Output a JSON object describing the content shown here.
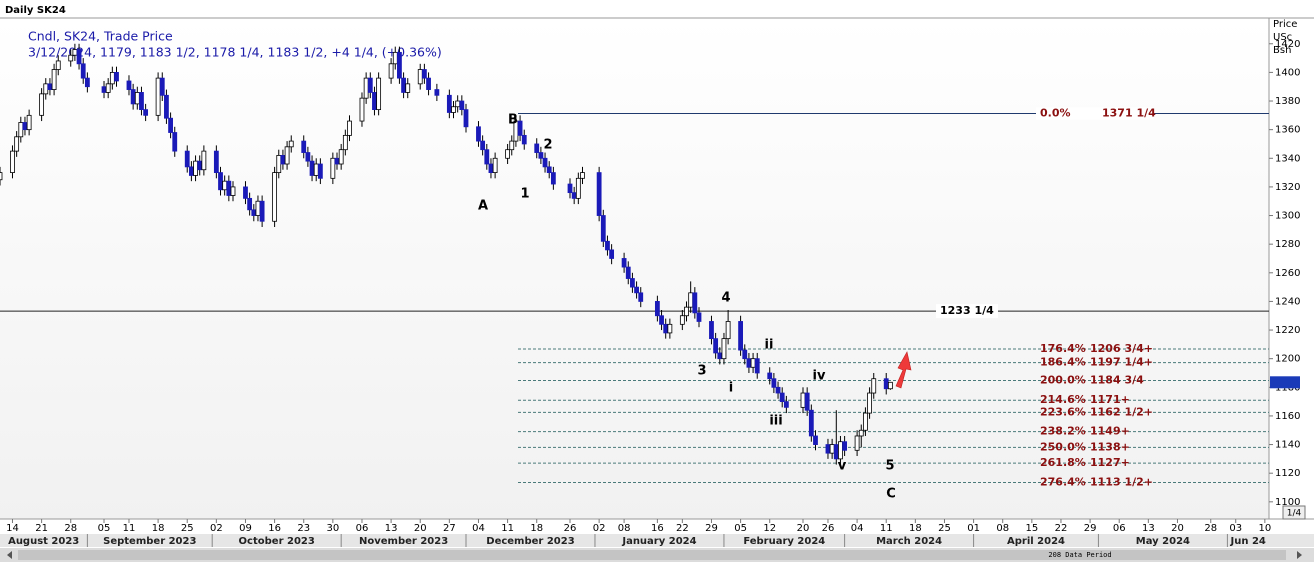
{
  "header": "Daily SK24",
  "chart_data": {
    "type": "candlestick",
    "legend_lines": [
      "Cndl, SK24, Trade Price",
      "3/12/2024, 1179, 1183 1/2, 1178 1/4, 1183 1/2, +4 1/4, (+0.36%)"
    ],
    "y_axis_title": [
      "Price",
      "USc",
      "Bsh"
    ],
    "up_color": "#ffffff",
    "down_color": "#1a1ab8",
    "ylim": [
      1088,
      1438
    ],
    "yticks": [
      1100,
      1120,
      1140,
      1160,
      1180,
      1200,
      1220,
      1240,
      1260,
      1280,
      1300,
      1320,
      1340,
      1360,
      1380,
      1400,
      1420
    ],
    "xlim": [
      "2023-08-11",
      "2024-06-11"
    ],
    "xticks": [
      {
        "value": "2023-08-14",
        "label": "14"
      },
      {
        "value": "2023-08-21",
        "label": "21"
      },
      {
        "value": "2023-08-28",
        "label": "28"
      },
      {
        "value": "2023-09-05",
        "label": "05"
      },
      {
        "value": "2023-09-11",
        "label": "11"
      },
      {
        "value": "2023-09-18",
        "label": "18"
      },
      {
        "value": "2023-09-25",
        "label": "25"
      },
      {
        "value": "2023-10-02",
        "label": "02"
      },
      {
        "value": "2023-10-09",
        "label": "09"
      },
      {
        "value": "2023-10-16",
        "label": "16"
      },
      {
        "value": "2023-10-23",
        "label": "23"
      },
      {
        "value": "2023-10-30",
        "label": "30"
      },
      {
        "value": "2023-11-06",
        "label": "06"
      },
      {
        "value": "2023-11-13",
        "label": "13"
      },
      {
        "value": "2023-11-20",
        "label": "20"
      },
      {
        "value": "2023-11-27",
        "label": "27"
      },
      {
        "value": "2023-12-04",
        "label": "04"
      },
      {
        "value": "2023-12-11",
        "label": "11"
      },
      {
        "value": "2023-12-18",
        "label": "18"
      },
      {
        "value": "2023-12-26",
        "label": "26"
      },
      {
        "value": "2024-01-02",
        "label": "02"
      },
      {
        "value": "2024-01-08",
        "label": "08"
      },
      {
        "value": "2024-01-16",
        "label": "16"
      },
      {
        "value": "2024-01-22",
        "label": "22"
      },
      {
        "value": "2024-01-29",
        "label": "29"
      },
      {
        "value": "2024-02-05",
        "label": "05"
      },
      {
        "value": "2024-02-12",
        "label": "12"
      },
      {
        "value": "2024-02-20",
        "label": "20"
      },
      {
        "value": "2024-02-26",
        "label": "26"
      },
      {
        "value": "2024-03-04",
        "label": "04"
      },
      {
        "value": "2024-03-11",
        "label": "11"
      },
      {
        "value": "2024-03-18",
        "label": "18"
      },
      {
        "value": "2024-03-25",
        "label": "25"
      },
      {
        "value": "2024-04-01",
        "label": "01"
      },
      {
        "value": "2024-04-08",
        "label": "08"
      },
      {
        "value": "2024-04-15",
        "label": "15"
      },
      {
        "value": "2024-04-22",
        "label": "22"
      },
      {
        "value": "2024-04-29",
        "label": "29"
      },
      {
        "value": "2024-05-06",
        "label": "06"
      },
      {
        "value": "2024-05-13",
        "label": "13"
      },
      {
        "value": "2024-05-20",
        "label": "20"
      },
      {
        "value": "2024-05-28",
        "label": "28"
      },
      {
        "value": "2024-06-03",
        "label": "03"
      },
      {
        "value": "2024-06-10",
        "label": "10"
      }
    ],
    "months": [
      {
        "value": "2023-08",
        "label": "August 2023"
      },
      {
        "value": "2023-09",
        "label": "September 2023"
      },
      {
        "value": "2023-10",
        "label": "October 2023"
      },
      {
        "value": "2023-11",
        "label": "November 2023"
      },
      {
        "value": "2023-12",
        "label": "December 2023"
      },
      {
        "value": "2024-01",
        "label": "January 2024"
      },
      {
        "value": "2024-02",
        "label": "February 2024"
      },
      {
        "value": "2024-03",
        "label": "March 2024"
      },
      {
        "value": "2024-04",
        "label": "April 2024"
      },
      {
        "value": "2024-05",
        "label": "May 2024"
      },
      {
        "value": "2024-06",
        "label": "Jun 24"
      }
    ],
    "x": [
      "2023-08-10",
      "2023-08-11",
      "2023-08-14",
      "2023-08-15",
      "2023-08-16",
      "2023-08-17",
      "2023-08-18",
      "2023-08-21",
      "2023-08-22",
      "2023-08-23",
      "2023-08-24",
      "2023-08-25",
      "2023-08-28",
      "2023-08-29",
      "2023-08-30",
      "2023-08-31",
      "2023-09-01",
      "2023-09-05",
      "2023-09-06",
      "2023-09-07",
      "2023-09-08",
      "2023-09-11",
      "2023-09-12",
      "2023-09-13",
      "2023-09-14",
      "2023-09-15",
      "2023-09-18",
      "2023-09-19",
      "2023-09-20",
      "2023-09-21",
      "2023-09-22",
      "2023-09-25",
      "2023-09-26",
      "2023-09-27",
      "2023-09-28",
      "2023-09-29",
      "2023-10-02",
      "2023-10-03",
      "2023-10-04",
      "2023-10-05",
      "2023-10-06",
      "2023-10-09",
      "2023-10-10",
      "2023-10-11",
      "2023-10-12",
      "2023-10-13",
      "2023-10-16",
      "2023-10-17",
      "2023-10-18",
      "2023-10-19",
      "2023-10-20",
      "2023-10-23",
      "2023-10-24",
      "2023-10-25",
      "2023-10-26",
      "2023-10-27",
      "2023-10-30",
      "2023-10-31",
      "2023-11-01",
      "2023-11-02",
      "2023-11-03",
      "2023-11-06",
      "2023-11-07",
      "2023-11-08",
      "2023-11-09",
      "2023-11-10",
      "2023-11-13",
      "2023-11-14",
      "2023-11-15",
      "2023-11-16",
      "2023-11-17",
      "2023-11-20",
      "2023-11-21",
      "2023-11-22",
      "2023-11-24",
      "2023-11-27",
      "2023-11-28",
      "2023-11-29",
      "2023-11-30",
      "2023-12-01",
      "2023-12-04",
      "2023-12-05",
      "2023-12-06",
      "2023-12-07",
      "2023-12-08",
      "2023-12-11",
      "2023-12-12",
      "2023-12-13",
      "2023-12-14",
      "2023-12-15",
      "2023-12-18",
      "2023-12-19",
      "2023-12-20",
      "2023-12-21",
      "2023-12-22",
      "2023-12-26",
      "2023-12-27",
      "2023-12-28",
      "2023-12-29",
      "2024-01-02",
      "2024-01-03",
      "2024-01-04",
      "2024-01-05",
      "2024-01-08",
      "2024-01-09",
      "2024-01-10",
      "2024-01-11",
      "2024-01-12",
      "2024-01-16",
      "2024-01-17",
      "2024-01-18",
      "2024-01-19",
      "2024-01-22",
      "2024-01-23",
      "2024-01-24",
      "2024-01-25",
      "2024-01-26",
      "2024-01-29",
      "2024-01-30",
      "2024-01-31",
      "2024-02-01",
      "2024-02-02",
      "2024-02-05",
      "2024-02-06",
      "2024-02-07",
      "2024-02-08",
      "2024-02-09",
      "2024-02-12",
      "2024-02-13",
      "2024-02-14",
      "2024-02-15",
      "2024-02-16",
      "2024-02-20",
      "2024-02-21",
      "2024-02-22",
      "2024-02-23",
      "2024-02-26",
      "2024-02-27",
      "2024-02-28",
      "2024-02-29",
      "2024-03-01",
      "2024-03-04",
      "2024-03-05",
      "2024-03-06",
      "2024-03-07",
      "2024-03-08",
      "2024-03-11",
      "2024-03-12"
    ],
    "ohlc": [
      [
        1335,
        1339,
        1321,
        1325
      ],
      [
        1325,
        1334,
        1321,
        1330
      ],
      [
        1330,
        1349,
        1326,
        1345
      ],
      [
        1345,
        1359,
        1341,
        1355
      ],
      [
        1355,
        1369,
        1351,
        1365
      ],
      [
        1365,
        1369,
        1356,
        1360
      ],
      [
        1360,
        1374,
        1356,
        1370
      ],
      [
        1370,
        1389,
        1366,
        1385
      ],
      [
        1385,
        1396,
        1381,
        1392
      ],
      [
        1392,
        1396,
        1384,
        1388
      ],
      [
        1388,
        1406,
        1384,
        1402
      ],
      [
        1402,
        1412,
        1398,
        1408
      ],
      [
        1408,
        1416,
        1404,
        1412
      ],
      [
        1412,
        1420,
        1408,
        1416
      ],
      [
        1416,
        1420,
        1402,
        1406
      ],
      [
        1406,
        1410,
        1392,
        1396
      ],
      [
        1396,
        1400,
        1386,
        1390
      ],
      [
        1390,
        1394,
        1382,
        1386
      ],
      [
        1386,
        1396,
        1382,
        1392
      ],
      [
        1392,
        1404,
        1388,
        1400
      ],
      [
        1400,
        1404,
        1390,
        1394
      ],
      [
        1394,
        1398,
        1384,
        1388
      ],
      [
        1388,
        1392,
        1374,
        1378
      ],
      [
        1378,
        1390,
        1374,
        1386
      ],
      [
        1386,
        1390,
        1370,
        1374
      ],
      [
        1374,
        1378,
        1366,
        1370
      ],
      [
        1370,
        1400,
        1366,
        1396
      ],
      [
        1396,
        1400,
        1380,
        1384
      ],
      [
        1384,
        1388,
        1364,
        1368
      ],
      [
        1368,
        1372,
        1354,
        1358
      ],
      [
        1358,
        1362,
        1341,
        1345
      ],
      [
        1345,
        1349,
        1330,
        1334
      ],
      [
        1334,
        1338,
        1324,
        1328
      ],
      [
        1328,
        1342,
        1324,
        1338
      ],
      [
        1338,
        1342,
        1328,
        1332
      ],
      [
        1332,
        1349,
        1328,
        1345
      ],
      [
        1345,
        1349,
        1326,
        1330
      ],
      [
        1330,
        1334,
        1314,
        1318
      ],
      [
        1318,
        1328,
        1314,
        1324
      ],
      [
        1324,
        1328,
        1310,
        1314
      ],
      [
        1314,
        1324,
        1310,
        1320
      ],
      [
        1320,
        1324,
        1308,
        1312
      ],
      [
        1312,
        1316,
        1300,
        1304
      ],
      [
        1304,
        1308,
        1296,
        1300
      ],
      [
        1300,
        1314,
        1296,
        1310
      ],
      [
        1310,
        1314,
        1292,
        1296
      ],
      [
        1296,
        1334,
        1292,
        1330
      ],
      [
        1330,
        1346,
        1326,
        1342
      ],
      [
        1342,
        1346,
        1332,
        1336
      ],
      [
        1336,
        1352,
        1332,
        1348
      ],
      [
        1348,
        1356,
        1344,
        1352
      ],
      [
        1352,
        1356,
        1340,
        1344
      ],
      [
        1344,
        1348,
        1334,
        1338
      ],
      [
        1338,
        1342,
        1324,
        1328
      ],
      [
        1328,
        1340,
        1324,
        1336
      ],
      [
        1336,
        1340,
        1322,
        1326
      ],
      [
        1326,
        1344,
        1322,
        1340
      ],
      [
        1340,
        1344,
        1332,
        1336
      ],
      [
        1336,
        1350,
        1332,
        1346
      ],
      [
        1346,
        1360,
        1342,
        1356
      ],
      [
        1356,
        1370,
        1352,
        1366
      ],
      [
        1366,
        1386,
        1362,
        1382
      ],
      [
        1382,
        1400,
        1378,
        1396
      ],
      [
        1396,
        1400,
        1382,
        1386
      ],
      [
        1386,
        1390,
        1370,
        1374
      ],
      [
        1374,
        1400,
        1370,
        1396
      ],
      [
        1396,
        1410,
        1392,
        1406
      ],
      [
        1406,
        1418,
        1402,
        1414
      ],
      [
        1414,
        1418,
        1392,
        1396
      ],
      [
        1396,
        1400,
        1382,
        1386
      ],
      [
        1386,
        1396,
        1382,
        1392
      ],
      [
        1392,
        1406,
        1388,
        1402
      ],
      [
        1402,
        1406,
        1392,
        1396
      ],
      [
        1396,
        1400,
        1384,
        1388
      ],
      [
        1388,
        1392,
        1380,
        1384
      ],
      [
        1384,
        1388,
        1368,
        1372
      ],
      [
        1372,
        1380,
        1368,
        1376
      ],
      [
        1376,
        1384,
        1372,
        1380
      ],
      [
        1380,
        1384,
        1370,
        1374
      ],
      [
        1374,
        1378,
        1358,
        1362
      ],
      [
        1362,
        1366,
        1348,
        1352
      ],
      [
        1352,
        1356,
        1342,
        1346
      ],
      [
        1346,
        1350,
        1332,
        1336
      ],
      [
        1336,
        1340,
        1326,
        1330
      ],
      [
        1330,
        1344,
        1326,
        1340
      ],
      [
        1340,
        1350,
        1336,
        1346
      ],
      [
        1346,
        1356,
        1342,
        1352
      ],
      [
        1352,
        1370,
        1348,
        1366
      ],
      [
        1366,
        1370,
        1352,
        1356
      ],
      [
        1356,
        1360,
        1346,
        1350
      ],
      [
        1350,
        1354,
        1340,
        1344
      ],
      [
        1344,
        1348,
        1336,
        1340
      ],
      [
        1340,
        1344,
        1330,
        1334
      ],
      [
        1334,
        1338,
        1326,
        1330
      ],
      [
        1330,
        1334,
        1318,
        1322
      ],
      [
        1322,
        1326,
        1312,
        1316
      ],
      [
        1316,
        1320,
        1308,
        1312
      ],
      [
        1312,
        1330,
        1308,
        1326
      ],
      [
        1326,
        1334,
        1322,
        1330
      ],
      [
        1330,
        1334,
        1296,
        1300
      ],
      [
        1300,
        1304,
        1278,
        1282
      ],
      [
        1282,
        1286,
        1272,
        1276
      ],
      [
        1276,
        1280,
        1266,
        1270
      ],
      [
        1270,
        1274,
        1260,
        1264
      ],
      [
        1264,
        1268,
        1252,
        1256
      ],
      [
        1256,
        1260,
        1246,
        1250
      ],
      [
        1250,
        1254,
        1242,
        1246
      ],
      [
        1246,
        1250,
        1236,
        1240
      ],
      [
        1240,
        1244,
        1226,
        1230
      ],
      [
        1230,
        1234,
        1220,
        1224
      ],
      [
        1224,
        1228,
        1214,
        1218
      ],
      [
        1218,
        1228,
        1214,
        1224
      ],
      [
        1224,
        1234,
        1220,
        1230
      ],
      [
        1230,
        1240,
        1226,
        1236
      ],
      [
        1236,
        1254,
        1232,
        1246
      ],
      [
        1246,
        1250,
        1228,
        1232
      ],
      [
        1232,
        1236,
        1222,
        1226
      ],
      [
        1226,
        1230,
        1210,
        1214
      ],
      [
        1214,
        1218,
        1200,
        1204
      ],
      [
        1204,
        1208,
        1196,
        1200
      ],
      [
        1200,
        1218,
        1196,
        1214
      ],
      [
        1214,
        1234,
        1210,
        1226
      ],
      [
        1226,
        1230,
        1202,
        1206
      ],
      [
        1206,
        1210,
        1196,
        1200
      ],
      [
        1200,
        1204,
        1190,
        1194
      ],
      [
        1194,
        1204,
        1190,
        1200
      ],
      [
        1200,
        1204,
        1186,
        1190
      ],
      [
        1190,
        1194,
        1182,
        1186
      ],
      [
        1186,
        1190,
        1176,
        1180
      ],
      [
        1180,
        1184,
        1172,
        1176
      ],
      [
        1176,
        1180,
        1166,
        1170
      ],
      [
        1170,
        1174,
        1162,
        1166
      ],
      [
        1166,
        1180,
        1162,
        1176
      ],
      [
        1176,
        1180,
        1160,
        1164
      ],
      [
        1164,
        1168,
        1142,
        1146
      ],
      [
        1146,
        1150,
        1136,
        1140
      ],
      [
        1140,
        1144,
        1130,
        1134
      ],
      [
        1134,
        1144,
        1130,
        1140
      ],
      [
        1140,
        1164,
        1126,
        1130
      ],
      [
        1130,
        1146,
        1126,
        1142
      ],
      [
        1142,
        1146,
        1132,
        1136
      ],
      [
        1136,
        1150,
        1132,
        1146
      ],
      [
        1146,
        1154,
        1138,
        1150
      ],
      [
        1150,
        1166,
        1146,
        1162
      ],
      [
        1162,
        1180,
        1158,
        1176
      ],
      [
        1176,
        1190,
        1172,
        1186
      ],
      [
        1186,
        1190,
        1175,
        1179
      ],
      [
        1179,
        1183.5,
        1178.25,
        1183.5
      ]
    ],
    "hlines": [
      {
        "value": 1371.25,
        "pct": "0.0%",
        "label": "1371 1/4",
        "color": "#1f3a6e"
      },
      {
        "value": 1233.25,
        "label": "1233 1/4",
        "color": "#222222"
      }
    ],
    "fib_levels": [
      {
        "value": 1206.75,
        "pct": "176.4%",
        "label": "1206 3/4+"
      },
      {
        "value": 1197.25,
        "pct": "186.4%",
        "label": "1197 1/4+"
      },
      {
        "value": 1184.75,
        "pct": "200.0%",
        "label": "1184 3/4"
      },
      {
        "value": 1171,
        "pct": "214.6%",
        "label": "1171+"
      },
      {
        "value": 1162.5,
        "pct": "223.6%",
        "label": "1162 1/2+"
      },
      {
        "value": 1149,
        "pct": "238.2%",
        "label": "1149+"
      },
      {
        "value": 1138,
        "pct": "250.0%",
        "label": "1138+"
      },
      {
        "value": 1127,
        "pct": "261.8%",
        "label": "1127+"
      },
      {
        "value": 1113.5,
        "pct": "276.4%",
        "label": "1113 1/2+"
      }
    ],
    "wave_labels": [
      "B",
      "2",
      "A",
      "1",
      "4",
      "3",
      "ii",
      "i",
      "iv",
      "iii",
      "v",
      "5",
      "C"
    ]
  },
  "scrollbar": {
    "label": "208 Data Period",
    "zoom": "1/4"
  }
}
